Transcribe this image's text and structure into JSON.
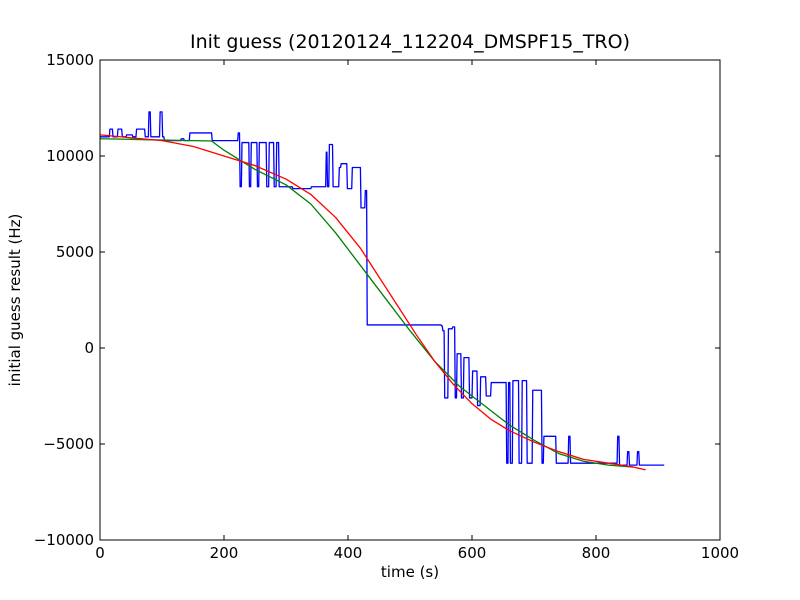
{
  "chart_data": {
    "type": "line",
    "title": "Init guess (20120124_112204_DMSPF15_TRO)",
    "xlabel": "time (s)",
    "ylabel": "initial guess result (Hz)",
    "xlim": [
      0,
      1000
    ],
    "ylim": [
      -10000,
      15000
    ],
    "xticks": [
      0,
      200,
      400,
      600,
      800,
      1000
    ],
    "yticks": [
      -10000,
      -5000,
      0,
      5000,
      10000,
      15000
    ],
    "xtick_labels": [
      "0",
      "200",
      "400",
      "600",
      "800",
      "1000"
    ],
    "ytick_labels": [
      "−10000",
      "−5000",
      "0",
      "5000",
      "10000",
      "15000"
    ],
    "grid": false,
    "legend": "none",
    "series": [
      {
        "color": "#0000ff",
        "x": [
          0,
          15,
          16,
          20,
          21,
          28,
          29,
          35,
          36,
          42,
          43,
          52,
          53,
          58,
          59,
          72,
          73,
          78,
          79,
          81,
          82,
          96,
          97,
          100,
          101,
          103,
          104,
          130,
          131,
          135,
          136,
          144,
          145,
          180,
          181,
          222,
          223,
          225,
          226,
          228,
          229,
          240,
          241,
          243,
          244,
          253,
          254,
          256,
          257,
          268,
          269,
          272,
          273,
          280,
          281,
          284,
          285,
          288,
          289,
          291,
          292,
          310,
          311,
          340,
          341,
          364,
          365,
          366,
          367,
          369,
          370,
          375,
          376,
          385,
          386,
          388,
          389,
          398,
          399,
          406,
          407,
          420,
          421,
          427,
          428,
          430,
          431,
          500,
          501,
          550,
          551,
          552,
          553,
          555,
          556,
          561,
          562,
          568,
          569,
          572,
          573,
          575,
          576,
          582,
          583,
          586,
          587,
          595,
          596,
          600,
          601,
          608,
          609,
          613,
          614,
          622,
          623,
          630,
          631,
          655,
          656,
          658,
          659,
          661,
          662,
          665,
          666,
          675,
          676,
          680,
          681,
          688,
          689,
          697,
          698,
          712,
          713,
          715,
          716,
          735,
          736,
          755,
          756,
          758,
          759,
          834,
          835,
          837,
          838,
          850,
          851,
          853,
          854,
          866,
          867,
          869,
          870,
          910
        ],
        "y": [
          11000,
          11000,
          11400,
          11400,
          11000,
          11000,
          11400,
          11400,
          11000,
          11000,
          11100,
          11100,
          11000,
          11000,
          11400,
          11400,
          11000,
          11000,
          12300,
          12300,
          11000,
          11000,
          12300,
          12300,
          11000,
          11000,
          10800,
          10800,
          10900,
          10900,
          10800,
          10800,
          11200,
          11200,
          10800,
          10800,
          11200,
          11200,
          8400,
          8400,
          10700,
          10700,
          8400,
          8400,
          10700,
          10700,
          8400,
          8400,
          10700,
          10700,
          8400,
          8400,
          10700,
          10700,
          8400,
          8400,
          10700,
          10700,
          8400,
          8400,
          8400,
          8400,
          8300,
          8300,
          8400,
          8400,
          10200,
          10200,
          8400,
          8400,
          10600,
          10600,
          8400,
          8400,
          9400,
          9400,
          9600,
          9600,
          8300,
          8300,
          9400,
          9400,
          7300,
          7300,
          8200,
          8200,
          1200,
          1200,
          1200,
          1200,
          1150,
          1150,
          900,
          900,
          -2600,
          -2600,
          1000,
          1000,
          1100,
          1100,
          -2600,
          -2600,
          -300,
          -300,
          -2600,
          -2600,
          -500,
          -500,
          -2600,
          -2600,
          -1200,
          -1200,
          -3000,
          -3000,
          -1500,
          -1500,
          -2500,
          -2500,
          -1800,
          -1800,
          -6000,
          -6000,
          -1800,
          -1800,
          -6000,
          -6000,
          -1700,
          -1700,
          -6000,
          -6000,
          -1700,
          -1700,
          -6000,
          -6000,
          -2200,
          -2200,
          -6000,
          -6000,
          -4600,
          -4600,
          -6000,
          -6000,
          -4600,
          -4600,
          -6000,
          -6000,
          -4600,
          -4600,
          -6100,
          -6100,
          -5400,
          -5400,
          -6100,
          -6100,
          -5400,
          -5400,
          -6100,
          -6100
        ]
      },
      {
        "color": "#008000",
        "x": [
          0,
          50,
          100,
          150,
          180,
          200,
          250,
          300,
          340,
          380,
          420,
          460,
          500,
          540,
          580,
          620,
          660,
          700,
          740,
          780,
          820,
          860
        ],
        "y": [
          10900,
          10870,
          10830,
          10800,
          10780,
          10300,
          9300,
          8500,
          7500,
          6000,
          4300,
          2600,
          900,
          -700,
          -2000,
          -3000,
          -4000,
          -4800,
          -5500,
          -5900,
          -6100,
          -6200
        ]
      },
      {
        "color": "#ff0000",
        "x": [
          0,
          50,
          100,
          150,
          200,
          250,
          300,
          340,
          380,
          420,
          450,
          480,
          510,
          540,
          570,
          600,
          630,
          660,
          700,
          740,
          780,
          820,
          860,
          880
        ],
        "y": [
          11100,
          10950,
          10800,
          10500,
          10000,
          9500,
          8800,
          8000,
          6800,
          5200,
          3700,
          2200,
          700,
          -700,
          -1900,
          -2900,
          -3700,
          -4300,
          -4900,
          -5400,
          -5800,
          -6000,
          -6200,
          -6350
        ]
      }
    ]
  }
}
